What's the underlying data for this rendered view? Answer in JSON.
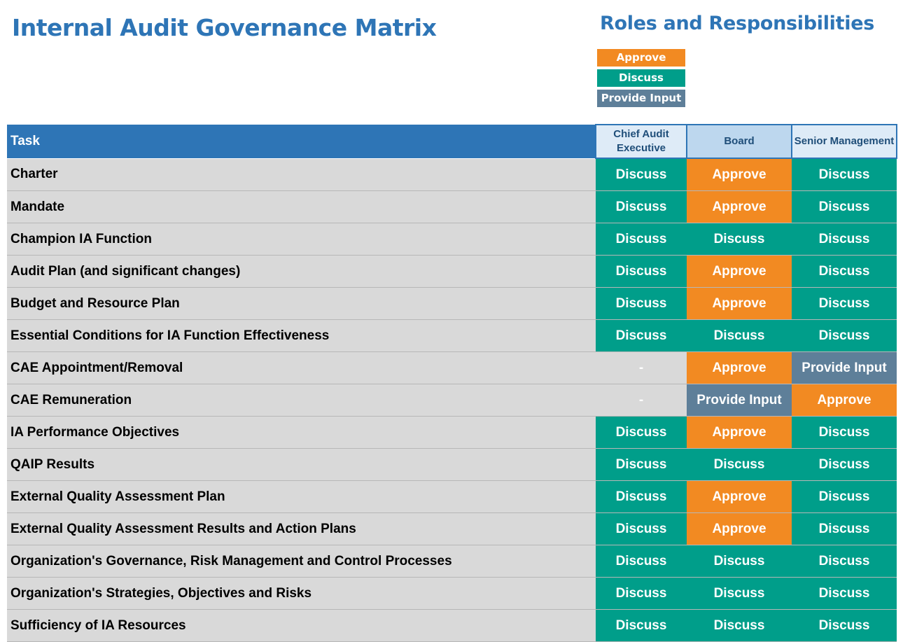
{
  "title": "Internal Audit Governance Matrix",
  "legend": {
    "title": "Roles and Responsibilities",
    "items": [
      {
        "key": "approve",
        "label": "Approve",
        "color": "#f28a22"
      },
      {
        "key": "discuss",
        "label": "Discuss",
        "color": "#009e8a"
      },
      {
        "key": "input",
        "label": "Provide Input",
        "color": "#5e7f99"
      }
    ]
  },
  "colors": {
    "approve": "#f28a22",
    "discuss": "#009e8a",
    "input": "#5e7f99",
    "none": "#d9d9d9"
  },
  "table": {
    "headers": {
      "task": "Task",
      "cae": "Chief Audit Executive",
      "board": "Board",
      "senior": "Senior Management"
    },
    "rows": [
      {
        "task": "Charter",
        "cae": "Discuss",
        "board": "Approve",
        "senior": "Discuss"
      },
      {
        "task": "Mandate",
        "cae": "Discuss",
        "board": "Approve",
        "senior": "Discuss"
      },
      {
        "task": "Champion IA Function",
        "cae": "Discuss",
        "board": "Discuss",
        "senior": "Discuss"
      },
      {
        "task": "Audit Plan (and significant changes)",
        "cae": "Discuss",
        "board": "Approve",
        "senior": "Discuss"
      },
      {
        "task": "Budget and Resource Plan",
        "cae": "Discuss",
        "board": "Approve",
        "senior": "Discuss"
      },
      {
        "task": "Essential Conditions for IA Function Effectiveness",
        "cae": "Discuss",
        "board": "Discuss",
        "senior": "Discuss"
      },
      {
        "task": "CAE Appointment/Removal",
        "cae": "-",
        "board": "Approve",
        "senior": "Provide Input"
      },
      {
        "task": "CAE Remuneration",
        "cae": "-",
        "board": "Provide Input",
        "senior": "Approve"
      },
      {
        "task": "IA Performance Objectives",
        "cae": "Discuss",
        "board": "Approve",
        "senior": "Discuss"
      },
      {
        "task": "QAIP Results",
        "cae": "Discuss",
        "board": "Discuss",
        "senior": "Discuss"
      },
      {
        "task": "External Quality Assessment Plan",
        "cae": "Discuss",
        "board": "Approve",
        "senior": "Discuss"
      },
      {
        "task": "External Quality Assessment Results and Action Plans",
        "cae": "Discuss",
        "board": "Approve",
        "senior": "Discuss"
      },
      {
        "task": "Organization's Governance, Risk Management and Control Processes",
        "cae": "Discuss",
        "board": "Discuss",
        "senior": "Discuss"
      },
      {
        "task": "Organization's Strategies, Objectives and Risks",
        "cae": "Discuss",
        "board": "Discuss",
        "senior": "Discuss"
      },
      {
        "task": "Sufficiency of IA Resources",
        "cae": "Discuss",
        "board": "Discuss",
        "senior": "Discuss"
      }
    ]
  }
}
